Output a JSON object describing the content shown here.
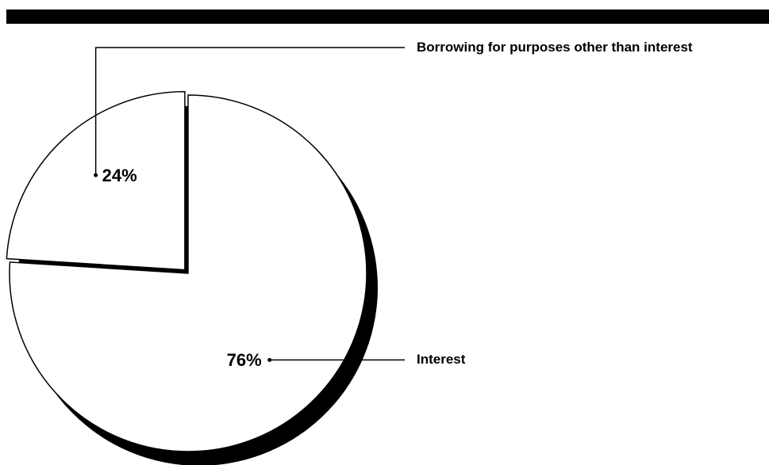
{
  "chart_data": {
    "type": "pie",
    "categories": [
      "Borrowing for purposes other than interest",
      "Interest"
    ],
    "values": [
      24,
      76
    ],
    "value_labels": [
      "24%",
      "76%"
    ],
    "colors": [
      "#ffffff",
      "#ffffff"
    ]
  }
}
